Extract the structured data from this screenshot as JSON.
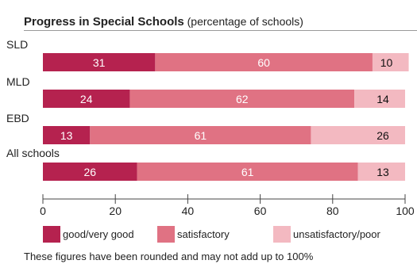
{
  "chart_data": {
    "type": "bar",
    "stacked": true,
    "orientation": "horizontal",
    "title": "Progress in Special Schools",
    "subtitle": "(percentage of schools)",
    "categories": [
      "SLD",
      "MLD",
      "EBD",
      "All schools"
    ],
    "series": [
      {
        "name": "good/very good",
        "color": "#b5224f",
        "values": [
          31,
          24,
          13,
          26
        ],
        "label_color": "#ffffff"
      },
      {
        "name": "satisfactory",
        "color": "#e07283",
        "values": [
          60,
          62,
          61,
          61
        ],
        "label_color": "#ffffff"
      },
      {
        "name": "unsatisfactory/poor",
        "color": "#f3b9c1",
        "values": [
          10,
          14,
          26,
          13
        ],
        "label_color": "#111111"
      }
    ],
    "xlim": [
      0,
      100
    ],
    "xticks": [
      "0",
      "20",
      "40",
      "60",
      "80",
      "100"
    ],
    "legend_position": "bottom",
    "footnote": "These figures have been rounded and may not add up to 100%",
    "grid": false
  }
}
